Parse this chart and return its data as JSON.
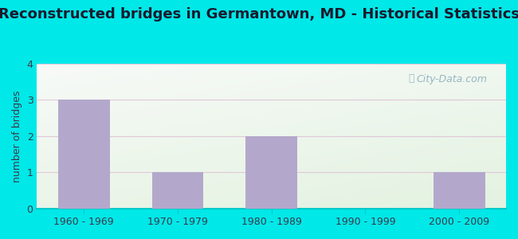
{
  "title": "Reconstructed bridges in Germantown, MD - Historical Statistics",
  "categories": [
    "1960 - 1969",
    "1970 - 1979",
    "1980 - 1989",
    "1990 - 1999",
    "2000 - 2009"
  ],
  "values": [
    3,
    1,
    2,
    0,
    1
  ],
  "bar_color": "#b3a8cc",
  "ylabel": "number of bridges",
  "ylim": [
    0,
    4
  ],
  "yticks": [
    0,
    1,
    2,
    3,
    4
  ],
  "background_outer": "#00e8e8",
  "title_color": "#1a1a2e",
  "title_fontsize": 13,
  "axis_label_fontsize": 9,
  "tick_fontsize": 9,
  "watermark": "City-Data.com",
  "grid_color": "#ccddcc",
  "bg_top_left": "#e8f5e0",
  "bg_top_right": "#f8fff8",
  "bg_bottom_left": "#d0e8d0",
  "bg_bottom_right": "#e8f8f0"
}
